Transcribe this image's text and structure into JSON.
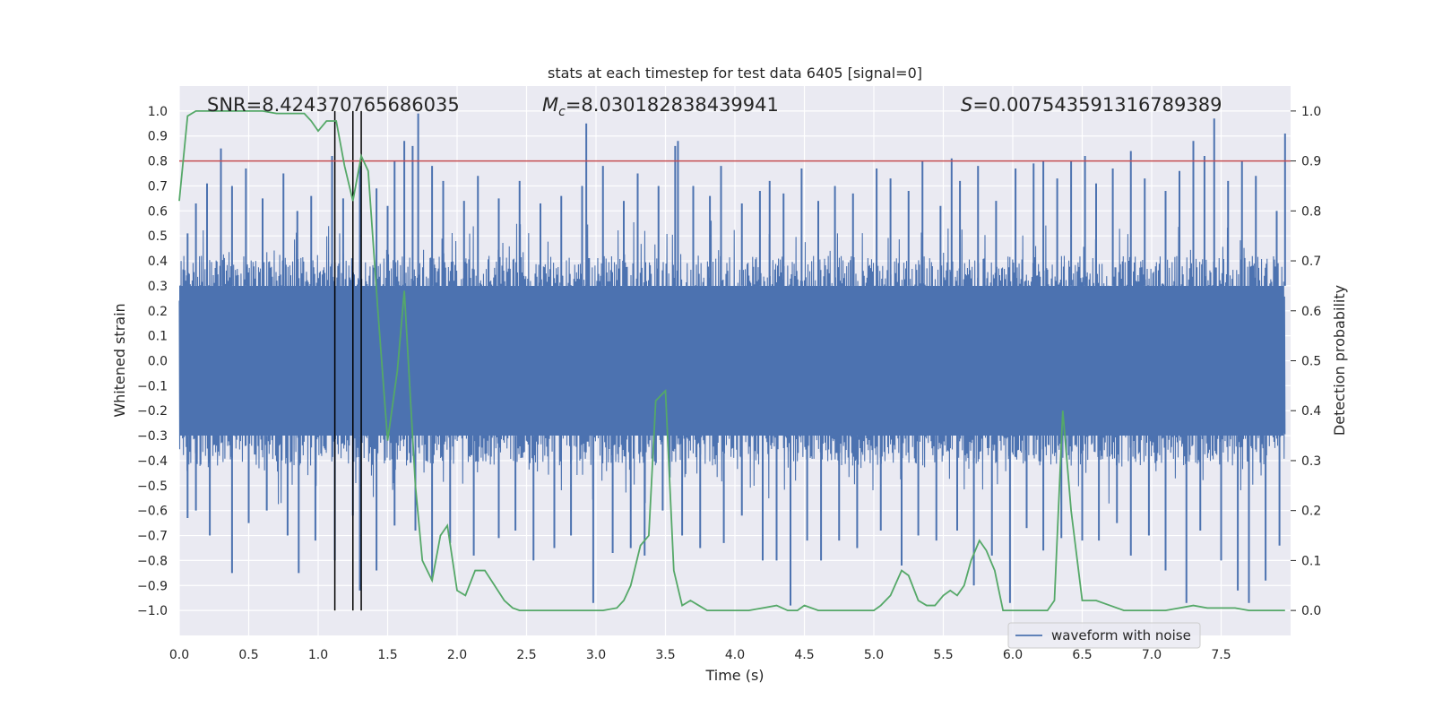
{
  "chart_data": {
    "type": "line",
    "title": "stats at each timestep for test data 6405 [signal=0]",
    "xlabel": "Time (s)",
    "ylabel": "Whitened strain",
    "y2label": "Detection probability",
    "xlim": [
      0,
      8
    ],
    "ylim": [
      -1.1,
      1.1
    ],
    "y2lim": [
      -0.05,
      1.05
    ],
    "x_ticks": [
      0.0,
      0.5,
      1.0,
      1.5,
      2.0,
      2.5,
      3.0,
      3.5,
      4.0,
      4.5,
      5.0,
      5.5,
      6.0,
      6.5,
      7.0,
      7.5
    ],
    "y_ticks": [
      -1.0,
      -0.9,
      -0.8,
      -0.7,
      -0.6,
      -0.5,
      -0.4,
      -0.3,
      -0.2,
      -0.1,
      0.0,
      0.1,
      0.2,
      0.3,
      0.4,
      0.5,
      0.6,
      0.7,
      0.8,
      0.9,
      1.0
    ],
    "y2_ticks": [
      0.0,
      0.1,
      0.2,
      0.3,
      0.4,
      0.5,
      0.6,
      0.7,
      0.8,
      0.9,
      1.0
    ],
    "annotations": {
      "snr": "SNR=8.424370765686035",
      "mc_symbol": "M",
      "mc_sub": "c",
      "mc_value": "=8.030182838439941",
      "s_symbol": "S",
      "s_value": "=0.007543591316789389"
    },
    "legend": {
      "entries": [
        "waveform with noise"
      ],
      "position": "lower-right"
    },
    "threshold": {
      "y2": 0.9,
      "color": "#c44e52"
    },
    "vertical_lines_x": [
      1.12,
      1.25,
      1.31
    ],
    "series": [
      {
        "name": "waveform with noise",
        "axis": "left",
        "color": "#4c72b0",
        "style": "noise",
        "envelope": 0.42,
        "spikes_top": [
          [
            0.06,
            0.51
          ],
          [
            0.12,
            0.63
          ],
          [
            0.2,
            0.71
          ],
          [
            0.3,
            0.85
          ],
          [
            0.38,
            0.7
          ],
          [
            0.48,
            0.77
          ],
          [
            0.6,
            0.65
          ],
          [
            0.75,
            0.75
          ],
          [
            0.85,
            0.6
          ],
          [
            0.95,
            0.66
          ],
          [
            1.1,
            0.82
          ],
          [
            1.18,
            0.65
          ],
          [
            1.3,
            0.78
          ],
          [
            1.42,
            0.69
          ],
          [
            1.5,
            0.62
          ],
          [
            1.55,
            0.8
          ],
          [
            1.62,
            0.88
          ],
          [
            1.68,
            0.86
          ],
          [
            1.72,
            0.99
          ],
          [
            1.82,
            0.78
          ],
          [
            1.9,
            0.72
          ],
          [
            2.05,
            0.64
          ],
          [
            2.15,
            0.74
          ],
          [
            2.3,
            0.65
          ],
          [
            2.45,
            0.72
          ],
          [
            2.6,
            0.63
          ],
          [
            2.75,
            0.66
          ],
          [
            2.9,
            0.7
          ],
          [
            2.93,
            0.95
          ],
          [
            3.05,
            0.78
          ],
          [
            3.2,
            0.64
          ],
          [
            3.3,
            0.75
          ],
          [
            3.45,
            0.7
          ],
          [
            3.57,
            0.86
          ],
          [
            3.59,
            0.88
          ],
          [
            3.7,
            0.7
          ],
          [
            3.82,
            0.66
          ],
          [
            3.9,
            0.78
          ],
          [
            4.05,
            0.63
          ],
          [
            4.18,
            0.68
          ],
          [
            4.25,
            0.72
          ],
          [
            4.35,
            0.67
          ],
          [
            4.48,
            0.77
          ],
          [
            4.6,
            0.64
          ],
          [
            4.72,
            0.7
          ],
          [
            4.85,
            0.67
          ],
          [
            5.02,
            0.77
          ],
          [
            5.12,
            0.73
          ],
          [
            5.25,
            0.68
          ],
          [
            5.35,
            0.8
          ],
          [
            5.48,
            0.62
          ],
          [
            5.56,
            0.81
          ],
          [
            5.62,
            0.72
          ],
          [
            5.75,
            0.78
          ],
          [
            5.88,
            0.64
          ],
          [
            6.02,
            0.77
          ],
          [
            6.15,
            0.79
          ],
          [
            6.22,
            0.8
          ],
          [
            6.32,
            0.73
          ],
          [
            6.42,
            0.8
          ],
          [
            6.52,
            0.82
          ],
          [
            6.6,
            0.71
          ],
          [
            6.72,
            0.77
          ],
          [
            6.85,
            0.84
          ],
          [
            6.95,
            0.73
          ],
          [
            7.1,
            0.68
          ],
          [
            7.2,
            0.76
          ],
          [
            7.3,
            0.88
          ],
          [
            7.38,
            0.82
          ],
          [
            7.45,
            0.97
          ],
          [
            7.55,
            0.72
          ],
          [
            7.65,
            0.8
          ],
          [
            7.75,
            0.74
          ],
          [
            7.9,
            0.6
          ],
          [
            7.96,
            0.91
          ]
        ],
        "spikes_bottom": [
          [
            0.06,
            -0.63
          ],
          [
            0.12,
            -0.6
          ],
          [
            0.22,
            -0.7
          ],
          [
            0.38,
            -0.85
          ],
          [
            0.5,
            -0.65
          ],
          [
            0.63,
            -0.6
          ],
          [
            0.78,
            -0.7
          ],
          [
            0.86,
            -0.85
          ],
          [
            0.98,
            -0.72
          ],
          [
            1.12,
            -0.8
          ],
          [
            1.25,
            -0.62
          ],
          [
            1.3,
            -0.92
          ],
          [
            1.42,
            -0.84
          ],
          [
            1.55,
            -0.66
          ],
          [
            1.7,
            -0.68
          ],
          [
            1.82,
            -0.88
          ],
          [
            1.95,
            -0.73
          ],
          [
            2.12,
            -0.78
          ],
          [
            2.3,
            -0.71
          ],
          [
            2.42,
            -0.68
          ],
          [
            2.55,
            -0.8
          ],
          [
            2.7,
            -0.75
          ],
          [
            2.82,
            -0.7
          ],
          [
            2.98,
            -0.97
          ],
          [
            3.12,
            -0.77
          ],
          [
            3.25,
            -0.75
          ],
          [
            3.35,
            -0.78
          ],
          [
            3.48,
            -0.6
          ],
          [
            3.62,
            -0.7
          ],
          [
            3.75,
            -0.75
          ],
          [
            3.92,
            -0.73
          ],
          [
            4.05,
            -0.62
          ],
          [
            4.2,
            -0.8
          ],
          [
            4.3,
            -0.8
          ],
          [
            4.4,
            -0.98
          ],
          [
            4.52,
            -0.72
          ],
          [
            4.62,
            -0.8
          ],
          [
            4.75,
            -0.72
          ],
          [
            4.88,
            -0.75
          ],
          [
            5.05,
            -0.68
          ],
          [
            5.2,
            -0.82
          ],
          [
            5.32,
            -0.7
          ],
          [
            5.45,
            -0.72
          ],
          [
            5.6,
            -0.68
          ],
          [
            5.72,
            -0.9
          ],
          [
            5.85,
            -0.78
          ],
          [
            5.98,
            -0.97
          ],
          [
            6.1,
            -0.67
          ],
          [
            6.22,
            -0.76
          ],
          [
            6.35,
            -0.71
          ],
          [
            6.5,
            -0.72
          ],
          [
            6.62,
            -0.72
          ],
          [
            6.75,
            -0.65
          ],
          [
            6.85,
            -0.78
          ],
          [
            6.98,
            -0.7
          ],
          [
            7.1,
            -0.84
          ],
          [
            7.25,
            -0.97
          ],
          [
            7.35,
            -0.68
          ],
          [
            7.5,
            -0.8
          ],
          [
            7.62,
            -0.92
          ],
          [
            7.7,
            -0.97
          ],
          [
            7.82,
            -0.88
          ],
          [
            7.92,
            -0.74
          ]
        ]
      },
      {
        "name": "detection probability",
        "axis": "right",
        "color": "#55a868",
        "x": [
          0.0,
          0.06,
          0.12,
          0.2,
          0.3,
          0.4,
          0.5,
          0.6,
          0.7,
          0.8,
          0.9,
          0.95,
          1.0,
          1.06,
          1.13,
          1.19,
          1.25,
          1.31,
          1.36,
          1.43,
          1.5,
          1.57,
          1.62,
          1.7,
          1.75,
          1.82,
          1.88,
          1.93,
          2.0,
          2.06,
          2.13,
          2.2,
          2.27,
          2.34,
          2.4,
          2.45,
          2.6,
          2.75,
          2.9,
          3.05,
          3.15,
          3.2,
          3.25,
          3.32,
          3.38,
          3.43,
          3.5,
          3.56,
          3.62,
          3.68,
          3.74,
          3.8,
          3.85,
          4.0,
          4.1,
          4.2,
          4.3,
          4.38,
          4.45,
          4.5,
          4.6,
          4.7,
          4.8,
          4.9,
          4.95,
          5.0,
          5.05,
          5.12,
          5.2,
          5.25,
          5.32,
          5.38,
          5.44,
          5.5,
          5.55,
          5.6,
          5.65,
          5.7,
          5.76,
          5.81,
          5.87,
          5.93,
          6.0,
          6.1,
          6.2,
          6.25,
          6.3,
          6.36,
          6.42,
          6.5,
          6.6,
          6.7,
          6.8,
          6.9,
          7.0,
          7.1,
          7.2,
          7.3,
          7.4,
          7.5,
          7.6,
          7.7,
          7.8,
          7.9,
          7.96
        ],
        "y": [
          0.82,
          0.99,
          1.0,
          1.0,
          1.0,
          1.0,
          1.0,
          1.0,
          0.995,
          0.995,
          0.995,
          0.98,
          0.96,
          0.98,
          0.98,
          0.89,
          0.82,
          0.91,
          0.88,
          0.6,
          0.34,
          0.48,
          0.64,
          0.25,
          0.1,
          0.06,
          0.15,
          0.17,
          0.04,
          0.03,
          0.08,
          0.08,
          0.05,
          0.02,
          0.005,
          0.0,
          0.0,
          0.0,
          0.0,
          0.0,
          0.005,
          0.02,
          0.05,
          0.13,
          0.15,
          0.42,
          0.44,
          0.08,
          0.01,
          0.02,
          0.01,
          0.0,
          0.0,
          0.0,
          0.0,
          0.005,
          0.01,
          0.0,
          0.0,
          0.01,
          0.0,
          0.0,
          0.0,
          0.0,
          0.0,
          0.0,
          0.01,
          0.03,
          0.08,
          0.07,
          0.02,
          0.01,
          0.01,
          0.03,
          0.04,
          0.03,
          0.05,
          0.1,
          0.14,
          0.12,
          0.08,
          0.0,
          0.0,
          0.0,
          0.0,
          0.0,
          0.02,
          0.4,
          0.2,
          0.02,
          0.02,
          0.01,
          0.0,
          0.0,
          0.0,
          0.0,
          0.005,
          0.01,
          0.005,
          0.005,
          0.005,
          0.0,
          0.0,
          0.0,
          0.0
        ]
      }
    ]
  }
}
